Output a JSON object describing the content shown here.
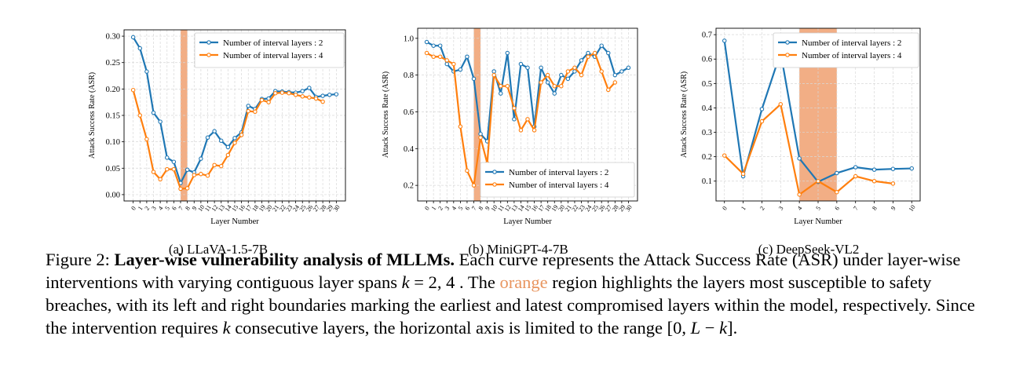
{
  "chart_data": [
    {
      "type": "line",
      "subcaption": "(a) LLaVA-1.5-7B",
      "xlabel": "Layer Number",
      "ylabel": "Attack Success Rate (ASR)",
      "ylim": [
        0.0,
        0.3
      ],
      "yticks": [
        "0.00",
        "0.05",
        "0.10",
        "0.15",
        "0.20",
        "0.25",
        "0.30"
      ],
      "x_ticks": [
        0,
        1,
        2,
        3,
        4,
        5,
        6,
        7,
        8,
        9,
        10,
        11,
        12,
        13,
        14,
        15,
        16,
        17,
        18,
        19,
        20,
        21,
        22,
        23,
        24,
        25,
        26,
        27,
        28,
        29,
        30
      ],
      "highlight_range": [
        7,
        8
      ],
      "legend_position": "top-right",
      "grid": true,
      "series": [
        {
          "name": "Number of interval layers : 2",
          "color": "#1f77b4",
          "x": [
            0,
            1,
            2,
            3,
            4,
            5,
            6,
            7,
            8,
            9,
            10,
            11,
            12,
            13,
            14,
            15,
            16,
            17,
            18,
            19,
            20,
            21,
            22,
            23,
            24,
            25,
            26,
            27,
            28,
            29,
            30
          ],
          "values": [
            0.298,
            0.277,
            0.233,
            0.155,
            0.138,
            0.07,
            0.062,
            0.022,
            0.047,
            0.042,
            0.068,
            0.108,
            0.12,
            0.102,
            0.09,
            0.107,
            0.118,
            0.168,
            0.162,
            0.181,
            0.182,
            0.196,
            0.195,
            0.194,
            0.193,
            0.196,
            0.202,
            0.185,
            0.187,
            0.189,
            0.19
          ]
        },
        {
          "name": "Number of interval layers : 4",
          "color": "#ff7f0e",
          "x": [
            0,
            1,
            2,
            3,
            4,
            5,
            6,
            7,
            8,
            9,
            10,
            11,
            12,
            13,
            14,
            15,
            16,
            17,
            18,
            19,
            20,
            21,
            22,
            23,
            24,
            25,
            26,
            27,
            28
          ],
          "values": [
            0.198,
            0.15,
            0.105,
            0.043,
            0.029,
            0.048,
            0.048,
            0.011,
            0.012,
            0.037,
            0.039,
            0.036,
            0.056,
            0.054,
            0.075,
            0.098,
            0.113,
            0.158,
            0.157,
            0.179,
            0.175,
            0.192,
            0.193,
            0.192,
            0.189,
            0.186,
            0.184,
            0.182,
            0.176
          ]
        }
      ]
    },
    {
      "type": "line",
      "subcaption": "(b) MiniGPT-4-7B",
      "xlabel": "Layer Number",
      "ylabel": "Attack Success Rate (ASR)",
      "ylim": [
        0.15,
        1.02
      ],
      "yticks": [
        "0.2",
        "0.4",
        "0.6",
        "0.8",
        "1.0"
      ],
      "x_ticks": [
        0,
        1,
        2,
        3,
        4,
        5,
        6,
        7,
        8,
        9,
        10,
        11,
        12,
        13,
        14,
        15,
        16,
        17,
        18,
        19,
        20,
        21,
        22,
        23,
        24,
        25,
        26,
        27,
        28,
        29,
        30
      ],
      "highlight_range": [
        7,
        8
      ],
      "legend_position": "lower-right",
      "grid": true,
      "series": [
        {
          "name": "Number of interval layers : 2",
          "color": "#1f77b4",
          "x": [
            0,
            1,
            2,
            3,
            4,
            5,
            6,
            7,
            8,
            9,
            10,
            11,
            12,
            13,
            14,
            15,
            16,
            17,
            18,
            19,
            20,
            21,
            22,
            23,
            24,
            25,
            26,
            27,
            28,
            29,
            30
          ],
          "values": [
            0.98,
            0.96,
            0.96,
            0.86,
            0.82,
            0.83,
            0.9,
            0.78,
            0.48,
            0.44,
            0.82,
            0.7,
            0.92,
            0.56,
            0.86,
            0.84,
            0.52,
            0.84,
            0.76,
            0.7,
            0.8,
            0.78,
            0.82,
            0.88,
            0.92,
            0.9,
            0.96,
            0.92,
            0.8,
            0.82,
            0.84
          ]
        },
        {
          "name": "Number of interval layers : 4",
          "color": "#ff7f0e",
          "x": [
            0,
            1,
            2,
            3,
            4,
            5,
            6,
            7,
            8,
            9,
            10,
            11,
            12,
            13,
            14,
            15,
            16,
            17,
            18,
            19,
            20,
            21,
            22,
            23,
            24,
            25,
            26,
            27,
            28
          ],
          "values": [
            0.92,
            0.9,
            0.9,
            0.88,
            0.86,
            0.52,
            0.28,
            0.2,
            0.46,
            0.32,
            0.8,
            0.74,
            0.74,
            0.62,
            0.5,
            0.56,
            0.5,
            0.76,
            0.8,
            0.74,
            0.74,
            0.82,
            0.84,
            0.8,
            0.9,
            0.92,
            0.82,
            0.72,
            0.76
          ]
        }
      ]
    },
    {
      "type": "line",
      "subcaption": "(c) DeepSeek-VL2",
      "xlabel": "Layer Number",
      "ylabel": "Attack Success Rate (ASR)",
      "ylim": [
        0.045,
        0.7
      ],
      "yticks": [
        "0.1",
        "0.2",
        "0.3",
        "0.4",
        "0.5",
        "0.6",
        "0.7"
      ],
      "x_ticks": [
        0,
        1,
        2,
        3,
        4,
        5,
        6,
        7,
        8,
        9,
        10
      ],
      "highlight_range": [
        4,
        6
      ],
      "legend_position": "top-right",
      "grid": true,
      "series": [
        {
          "name": "Number of interval layers : 2",
          "color": "#1f77b4",
          "x": [
            0,
            1,
            2,
            3,
            4,
            5,
            6,
            7,
            8,
            9,
            10
          ],
          "values": [
            0.675,
            0.12,
            0.395,
            0.627,
            0.193,
            0.097,
            0.133,
            0.157,
            0.147,
            0.15,
            0.152
          ]
        },
        {
          "name": "Number of interval layers : 4",
          "color": "#ff7f0e",
          "x": [
            0,
            1,
            2,
            3,
            4,
            5,
            6,
            7,
            8,
            9
          ],
          "values": [
            0.205,
            0.13,
            0.345,
            0.415,
            0.045,
            0.1,
            0.055,
            0.12,
            0.1,
            0.09
          ]
        }
      ]
    }
  ],
  "caption": {
    "label": "Figure 2: ",
    "bold": "Layer-wise vulnerability analysis of MLLMs.",
    "t1": " Each curve represents the Attack Success Rate (ASR) under layer-wise interventions with varying contiguous layer spans ",
    "math1": "k",
    "math1b": " = 2, 4",
    "t2": " . The ",
    "orange": "orange",
    "t3": " region highlights the layers most susceptible to safety breaches, with its left and right boundaries marking the earliest and latest compromised layers within the model, respectively. Since the intervention requires ",
    "math2": "k",
    "t4": " consecutive layers, the horizontal axis is limited to the range ",
    "math3a": "[0, ",
    "math3b": "L",
    "math3c": " − ",
    "math3d": "k",
    "math3e": "]",
    "t5": "."
  },
  "colors": {
    "series_blue": "#1f77b4",
    "series_orange": "#ff7f0e",
    "highlight": "#f0a070",
    "caption_orange": "#e8955f"
  }
}
